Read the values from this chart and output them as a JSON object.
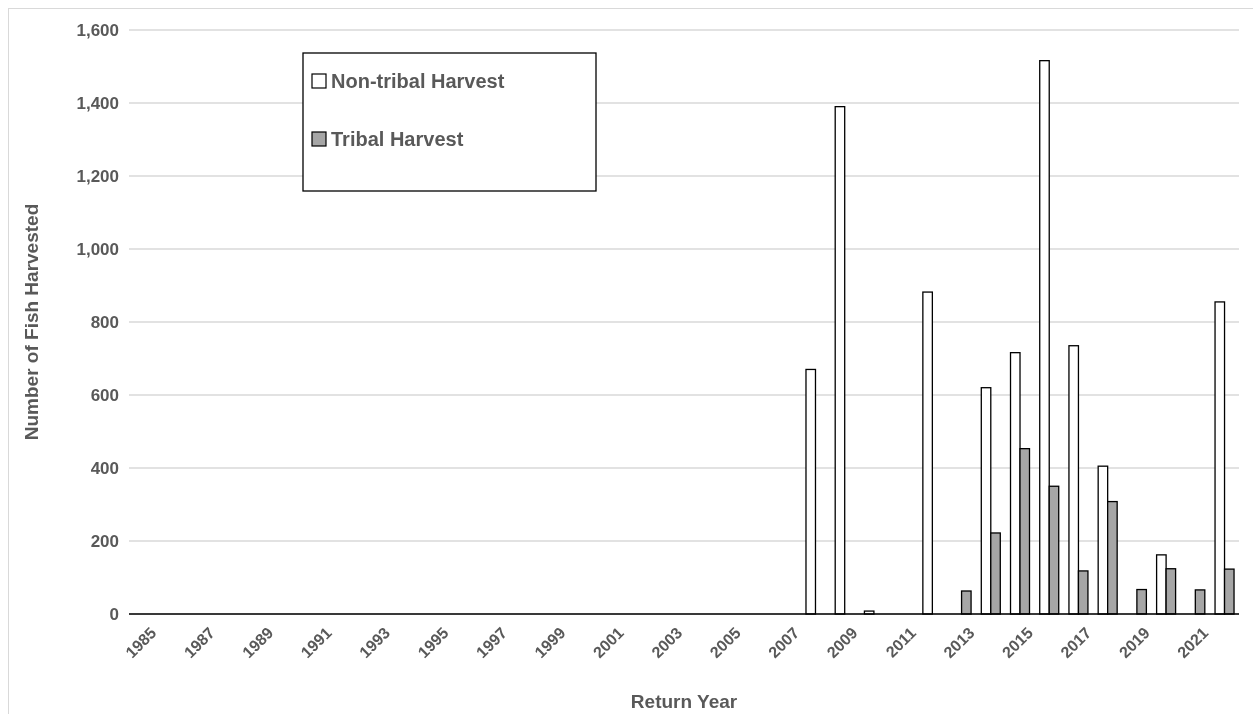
{
  "chart_data": {
    "type": "bar",
    "xlabel": "Return Year",
    "ylabel": "Number of Fish Harvested",
    "categories": [
      "1985",
      null,
      "1987",
      null,
      "1989",
      null,
      "1991",
      null,
      "1993",
      null,
      "1995",
      null,
      "1997",
      null,
      "1999",
      null,
      "2001",
      null,
      "2003",
      null,
      "2005",
      null,
      "2007",
      null,
      "2009",
      null,
      "2011",
      null,
      "2013",
      null,
      "2015",
      null,
      "2017",
      null,
      "2019",
      null,
      "2021",
      null
    ],
    "series": [
      {
        "name": "Non-tribal Harvest",
        "color": "#ffffff",
        "values": [
          null,
          null,
          null,
          null,
          null,
          null,
          null,
          null,
          null,
          null,
          null,
          null,
          null,
          null,
          null,
          null,
          null,
          null,
          null,
          null,
          null,
          null,
          null,
          670,
          1390,
          8,
          null,
          882,
          null,
          620,
          716,
          1516,
          735,
          405,
          null,
          162,
          null,
          855
        ]
      },
      {
        "name": "Tribal Harvest",
        "color": "#a6a6a6",
        "values": [
          null,
          null,
          null,
          null,
          null,
          null,
          null,
          null,
          null,
          null,
          null,
          null,
          null,
          null,
          null,
          null,
          null,
          null,
          null,
          null,
          null,
          null,
          null,
          null,
          null,
          null,
          null,
          null,
          63,
          222,
          453,
          350,
          118,
          308,
          67,
          124,
          66,
          123
        ]
      }
    ],
    "ylim": [
      0,
      1600
    ],
    "yticks": [
      {
        "value": 0,
        "label": "0"
      },
      {
        "value": 200,
        "label": "200"
      },
      {
        "value": 400,
        "label": "400"
      },
      {
        "value": 600,
        "label": "600"
      },
      {
        "value": 800,
        "label": "800"
      },
      {
        "value": 1000,
        "label": "1,000"
      },
      {
        "value": 1200,
        "label": "1,200"
      },
      {
        "value": 1400,
        "label": "1,400"
      },
      {
        "value": 1600,
        "label": "1,600"
      }
    ],
    "grid": "y",
    "legend": "top left"
  }
}
